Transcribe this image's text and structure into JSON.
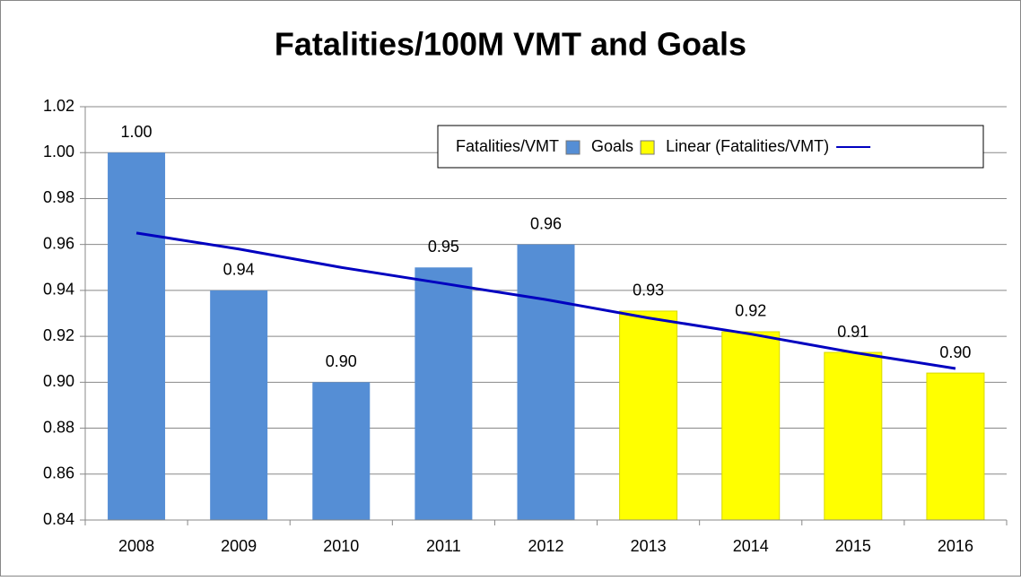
{
  "chart_data": {
    "type": "bar",
    "title": "Fatalities/100M VMT and Goals",
    "categories": [
      "2008",
      "2009",
      "2010",
      "2011",
      "2012",
      "2013",
      "2014",
      "2015",
      "2016"
    ],
    "series": [
      {
        "name": "Fatalities/VMT",
        "color": "#558ed5",
        "values": [
          1.0,
          0.94,
          0.9,
          0.95,
          0.96,
          null,
          null,
          null,
          null
        ],
        "value_labels": [
          "1.00",
          "0.94",
          "0.90",
          "0.95",
          "0.96",
          null,
          null,
          null,
          null
        ]
      },
      {
        "name": "Goals",
        "color": "#ffff00",
        "values": [
          null,
          null,
          null,
          null,
          null,
          0.931,
          0.922,
          0.913,
          0.904
        ],
        "value_labels": [
          null,
          null,
          null,
          null,
          null,
          "0.93",
          "0.92",
          "0.91",
          "0.90"
        ]
      },
      {
        "name": "Linear (Fatalities/VMT)",
        "type": "line",
        "color": "#0000c0",
        "values": [
          0.965,
          0.958,
          0.95,
          0.943,
          0.936,
          0.928,
          0.921,
          0.913,
          0.906
        ]
      }
    ],
    "ylim": [
      0.84,
      1.02
    ],
    "yticks": [
      0.84,
      0.86,
      0.88,
      {
        "value": 0.9,
        "label": "0.90"
      },
      0.92,
      0.94,
      0.96,
      0.98,
      {
        "value": 1,
        "label": "1.00"
      },
      1.02
    ],
    "grid": true,
    "legend": "top-right"
  }
}
